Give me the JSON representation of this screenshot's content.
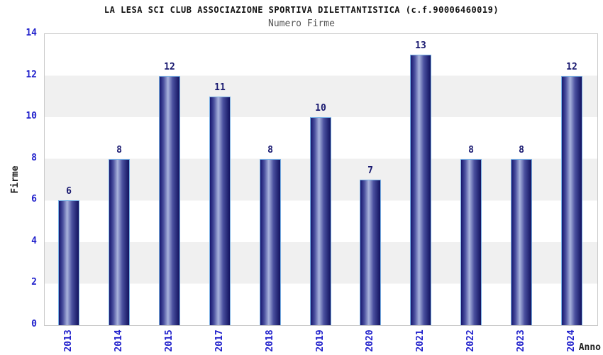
{
  "chart_data": {
    "type": "bar",
    "title": "LA LESA SCI CLUB ASSOCIAZIONE SPORTIVA DILETTANTISTICA (c.f.90006460019)",
    "subtitle": "Numero Firme",
    "xlabel": "Anno",
    "ylabel": "Firme",
    "categories": [
      "2013",
      "2014",
      "2015",
      "2017",
      "2018",
      "2019",
      "2020",
      "2021",
      "2022",
      "2023",
      "2024"
    ],
    "values": [
      6,
      8,
      12,
      11,
      8,
      10,
      7,
      13,
      8,
      8,
      12
    ],
    "ylim": [
      0,
      14
    ],
    "yticks": [
      0,
      2,
      4,
      6,
      8,
      10,
      12,
      14
    ],
    "grid": "alternating-horizontal-bands",
    "legend": "none",
    "value_labels_shown": true
  },
  "colors": {
    "page_bg": "#ffffff",
    "title": "#111111",
    "subtitle": "#555555",
    "tick_label_blue": "#2222cc",
    "value_label_navy": "#191970",
    "axis_title": "#222222",
    "plot_border": "#c9c9c9",
    "band_gray": "#f0f0f0",
    "bar_edge_dark": "#16166e",
    "bar_center_light": "#a9b3dd",
    "bar_outline_lightblue": "#7ab2e6"
  }
}
